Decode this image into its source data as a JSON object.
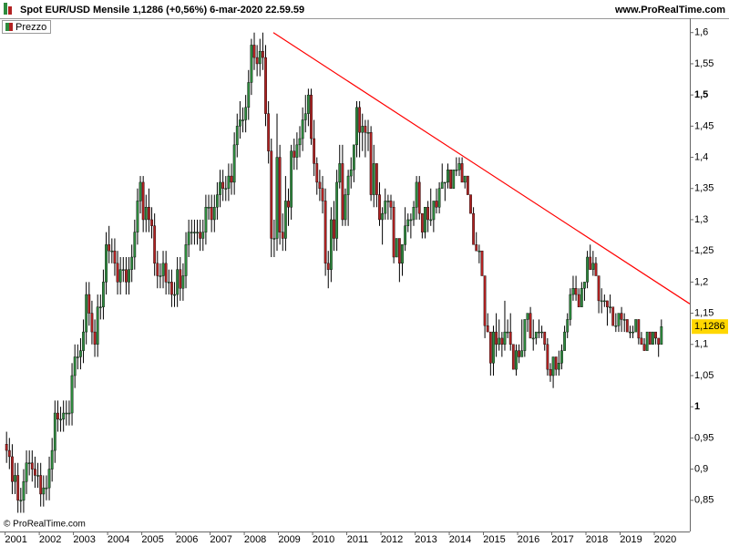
{
  "chart_data": {
    "type": "candlestick",
    "title": "Spot EUR/USD Mensile 1,1286 (+0,56%) 6-mar-2020 22.59.59",
    "source": "www.ProRealTime.com",
    "credit": "© ProRealTime.com",
    "legend": "Prezzo",
    "up_color": "#2e8b3e",
    "down_color": "#b22222",
    "wick_color": "#000000",
    "xlim": [
      2000.85,
      2021.04
    ],
    "xticks": [
      2001,
      2002,
      2003,
      2004,
      2005,
      2006,
      2007,
      2008,
      2009,
      2010,
      2011,
      2012,
      2013,
      2014,
      2015,
      2016,
      2017,
      2018,
      2019,
      2020
    ],
    "ylim": [
      0.8,
      1.623
    ],
    "yticks": [
      {
        "value": 0.85,
        "label": "0,85"
      },
      {
        "value": 0.9,
        "label": "0,9"
      },
      {
        "value": 0.95,
        "label": "0,95"
      },
      1,
      {
        "value": 1.05,
        "label": "1,05"
      },
      {
        "value": 1.1,
        "label": "1,1"
      },
      {
        "value": 1.15,
        "label": "1,15"
      },
      {
        "value": 1.2,
        "label": "1,2"
      },
      {
        "value": 1.25,
        "label": "1,25"
      },
      {
        "value": 1.3,
        "label": "1,3"
      },
      {
        "value": 1.35,
        "label": "1,35"
      },
      {
        "value": 1.4,
        "label": "1,4"
      },
      {
        "value": 1.45,
        "label": "1,45"
      },
      {
        "value": 1.5,
        "label": "1,5"
      },
      {
        "value": 1.55,
        "label": "1,55"
      },
      {
        "value": 1.6,
        "label": "1,6"
      }
    ],
    "trendline": {
      "color": "#ff0000",
      "x": [
        2008.85,
        2021.04
      ],
      "y": [
        1.6,
        1.165
      ]
    },
    "last_price": {
      "value": 1.1286,
      "label": "1,1286",
      "color": "#ffd700"
    },
    "ohlc": [
      [
        0.94,
        0.96,
        0.91,
        0.93
      ],
      [
        0.93,
        0.95,
        0.9,
        0.92
      ],
      [
        0.92,
        0.94,
        0.86,
        0.88
      ],
      [
        0.88,
        0.91,
        0.86,
        0.89
      ],
      [
        0.89,
        0.91,
        0.83,
        0.85
      ],
      [
        0.85,
        0.87,
        0.83,
        0.85
      ],
      [
        0.85,
        0.9,
        0.83,
        0.88
      ],
      [
        0.88,
        0.93,
        0.86,
        0.91
      ],
      [
        0.91,
        0.93,
        0.89,
        0.91
      ],
      [
        0.91,
        0.93,
        0.88,
        0.9
      ],
      [
        0.9,
        0.92,
        0.87,
        0.89
      ],
      [
        0.89,
        0.91,
        0.87,
        0.89
      ],
      [
        0.89,
        0.91,
        0.84,
        0.86
      ],
      [
        0.86,
        0.89,
        0.84,
        0.87
      ],
      [
        0.87,
        0.89,
        0.85,
        0.87
      ],
      [
        0.87,
        0.92,
        0.85,
        0.9
      ],
      [
        0.9,
        0.95,
        0.88,
        0.93
      ],
      [
        0.93,
        1.01,
        0.91,
        0.99
      ],
      [
        0.99,
        1.01,
        0.96,
        0.98
      ],
      [
        0.98,
        1.0,
        0.96,
        0.98
      ],
      [
        0.98,
        1.01,
        0.96,
        0.99
      ],
      [
        0.99,
        1.01,
        0.97,
        0.99
      ],
      [
        0.99,
        1.01,
        0.97,
        0.99
      ],
      [
        0.99,
        1.07,
        0.97,
        1.05
      ],
      [
        1.05,
        1.1,
        1.03,
        1.08
      ],
      [
        1.08,
        1.1,
        1.06,
        1.08
      ],
      [
        1.08,
        1.11,
        1.06,
        1.09
      ],
      [
        1.09,
        1.14,
        1.07,
        1.12
      ],
      [
        1.12,
        1.2,
        1.1,
        1.18
      ],
      [
        1.18,
        1.2,
        1.13,
        1.15
      ],
      [
        1.15,
        1.17,
        1.1,
        1.12
      ],
      [
        1.12,
        1.14,
        1.08,
        1.1
      ],
      [
        1.1,
        1.18,
        1.08,
        1.16
      ],
      [
        1.16,
        1.18,
        1.14,
        1.16
      ],
      [
        1.16,
        1.22,
        1.14,
        1.2
      ],
      [
        1.2,
        1.28,
        1.18,
        1.26
      ],
      [
        1.26,
        1.29,
        1.23,
        1.25
      ],
      [
        1.25,
        1.27,
        1.23,
        1.25
      ],
      [
        1.25,
        1.27,
        1.21,
        1.23
      ],
      [
        1.23,
        1.25,
        1.18,
        1.2
      ],
      [
        1.2,
        1.24,
        1.18,
        1.22
      ],
      [
        1.22,
        1.24,
        1.2,
        1.22
      ],
      [
        1.22,
        1.24,
        1.18,
        1.2
      ],
      [
        1.2,
        1.24,
        1.18,
        1.22
      ],
      [
        1.22,
        1.26,
        1.2,
        1.24
      ],
      [
        1.24,
        1.3,
        1.22,
        1.28
      ],
      [
        1.28,
        1.35,
        1.26,
        1.33
      ],
      [
        1.33,
        1.37,
        1.31,
        1.36
      ],
      [
        1.36,
        1.37,
        1.28,
        1.3
      ],
      [
        1.3,
        1.34,
        1.28,
        1.32
      ],
      [
        1.32,
        1.35,
        1.28,
        1.3
      ],
      [
        1.3,
        1.32,
        1.27,
        1.29
      ],
      [
        1.29,
        1.31,
        1.21,
        1.23
      ],
      [
        1.23,
        1.25,
        1.19,
        1.21
      ],
      [
        1.21,
        1.23,
        1.19,
        1.21
      ],
      [
        1.21,
        1.25,
        1.19,
        1.23
      ],
      [
        1.23,
        1.25,
        1.18,
        1.2
      ],
      [
        1.2,
        1.22,
        1.18,
        1.2
      ],
      [
        1.2,
        1.22,
        1.16,
        1.18
      ],
      [
        1.18,
        1.2,
        1.16,
        1.18
      ],
      [
        1.18,
        1.24,
        1.16,
        1.22
      ],
      [
        1.22,
        1.24,
        1.17,
        1.19
      ],
      [
        1.19,
        1.23,
        1.17,
        1.21
      ],
      [
        1.21,
        1.28,
        1.19,
        1.26
      ],
      [
        1.26,
        1.3,
        1.24,
        1.28
      ],
      [
        1.28,
        1.3,
        1.26,
        1.28
      ],
      [
        1.28,
        1.3,
        1.26,
        1.28
      ],
      [
        1.28,
        1.3,
        1.26,
        1.28
      ],
      [
        1.28,
        1.3,
        1.25,
        1.27
      ],
      [
        1.27,
        1.3,
        1.25,
        1.28
      ],
      [
        1.28,
        1.34,
        1.26,
        1.32
      ],
      [
        1.32,
        1.34,
        1.3,
        1.32
      ],
      [
        1.32,
        1.34,
        1.28,
        1.3
      ],
      [
        1.3,
        1.34,
        1.28,
        1.32
      ],
      [
        1.32,
        1.36,
        1.3,
        1.34
      ],
      [
        1.34,
        1.38,
        1.32,
        1.36
      ],
      [
        1.36,
        1.38,
        1.33,
        1.35
      ],
      [
        1.35,
        1.37,
        1.33,
        1.35
      ],
      [
        1.35,
        1.39,
        1.33,
        1.37
      ],
      [
        1.37,
        1.39,
        1.34,
        1.36
      ],
      [
        1.36,
        1.44,
        1.34,
        1.42
      ],
      [
        1.42,
        1.47,
        1.4,
        1.45
      ],
      [
        1.45,
        1.49,
        1.43,
        1.46
      ],
      [
        1.46,
        1.48,
        1.44,
        1.46
      ],
      [
        1.46,
        1.5,
        1.44,
        1.48
      ],
      [
        1.48,
        1.54,
        1.46,
        1.52
      ],
      [
        1.52,
        1.59,
        1.5,
        1.58
      ],
      [
        1.58,
        1.6,
        1.54,
        1.56
      ],
      [
        1.56,
        1.58,
        1.53,
        1.55
      ],
      [
        1.55,
        1.59,
        1.53,
        1.57
      ],
      [
        1.57,
        1.6,
        1.54,
        1.56
      ],
      [
        1.56,
        1.58,
        1.45,
        1.47
      ],
      [
        1.47,
        1.49,
        1.39,
        1.41
      ],
      [
        1.41,
        1.43,
        1.24,
        1.27
      ],
      [
        1.27,
        1.3,
        1.24,
        1.27
      ],
      [
        1.27,
        1.47,
        1.25,
        1.4
      ],
      [
        1.4,
        1.42,
        1.26,
        1.28
      ],
      [
        1.28,
        1.31,
        1.25,
        1.27
      ],
      [
        1.27,
        1.37,
        1.25,
        1.33
      ],
      [
        1.33,
        1.35,
        1.29,
        1.32
      ],
      [
        1.32,
        1.42,
        1.3,
        1.41
      ],
      [
        1.41,
        1.43,
        1.38,
        1.4
      ],
      [
        1.4,
        1.44,
        1.38,
        1.42
      ],
      [
        1.42,
        1.45,
        1.4,
        1.43
      ],
      [
        1.43,
        1.48,
        1.41,
        1.46
      ],
      [
        1.46,
        1.5,
        1.44,
        1.47
      ],
      [
        1.47,
        1.51,
        1.45,
        1.5
      ],
      [
        1.5,
        1.51,
        1.42,
        1.43
      ],
      [
        1.43,
        1.46,
        1.37,
        1.39
      ],
      [
        1.39,
        1.4,
        1.34,
        1.36
      ],
      [
        1.36,
        1.38,
        1.33,
        1.35
      ],
      [
        1.35,
        1.37,
        1.31,
        1.33
      ],
      [
        1.33,
        1.35,
        1.21,
        1.23
      ],
      [
        1.23,
        1.25,
        1.19,
        1.22
      ],
      [
        1.22,
        1.32,
        1.2,
        1.3
      ],
      [
        1.3,
        1.33,
        1.25,
        1.27
      ],
      [
        1.27,
        1.38,
        1.25,
        1.36
      ],
      [
        1.36,
        1.42,
        1.35,
        1.39
      ],
      [
        1.39,
        1.42,
        1.29,
        1.3
      ],
      [
        1.3,
        1.35,
        1.29,
        1.34
      ],
      [
        1.34,
        1.38,
        1.29,
        1.37
      ],
      [
        1.37,
        1.4,
        1.35,
        1.38
      ],
      [
        1.38,
        1.42,
        1.36,
        1.42
      ],
      [
        1.42,
        1.49,
        1.4,
        1.48
      ],
      [
        1.48,
        1.49,
        1.4,
        1.44
      ],
      [
        1.44,
        1.47,
        1.41,
        1.45
      ],
      [
        1.45,
        1.46,
        1.4,
        1.44
      ],
      [
        1.44,
        1.46,
        1.41,
        1.44
      ],
      [
        1.44,
        1.45,
        1.33,
        1.34
      ],
      [
        1.34,
        1.42,
        1.32,
        1.39
      ],
      [
        1.39,
        1.39,
        1.32,
        1.34
      ],
      [
        1.34,
        1.36,
        1.29,
        1.3
      ],
      [
        1.3,
        1.32,
        1.26,
        1.31
      ],
      [
        1.31,
        1.35,
        1.3,
        1.33
      ],
      [
        1.33,
        1.34,
        1.3,
        1.33
      ],
      [
        1.33,
        1.34,
        1.3,
        1.32
      ],
      [
        1.32,
        1.33,
        1.23,
        1.24
      ],
      [
        1.24,
        1.27,
        1.24,
        1.27
      ],
      [
        1.27,
        1.27,
        1.2,
        1.23
      ],
      [
        1.23,
        1.26,
        1.21,
        1.26
      ],
      [
        1.26,
        1.32,
        1.25,
        1.29
      ],
      [
        1.29,
        1.31,
        1.28,
        1.3
      ],
      [
        1.3,
        1.31,
        1.27,
        1.3
      ],
      [
        1.3,
        1.33,
        1.29,
        1.32
      ],
      [
        1.32,
        1.37,
        1.3,
        1.36
      ],
      [
        1.36,
        1.37,
        1.3,
        1.31
      ],
      [
        1.31,
        1.31,
        1.27,
        1.28
      ],
      [
        1.28,
        1.32,
        1.27,
        1.32
      ],
      [
        1.32,
        1.33,
        1.28,
        1.3
      ],
      [
        1.3,
        1.35,
        1.29,
        1.3
      ],
      [
        1.3,
        1.33,
        1.28,
        1.33
      ],
      [
        1.33,
        1.35,
        1.31,
        1.32
      ],
      [
        1.32,
        1.36,
        1.31,
        1.35
      ],
      [
        1.35,
        1.39,
        1.35,
        1.36
      ],
      [
        1.36,
        1.36,
        1.33,
        1.36
      ],
      [
        1.36,
        1.39,
        1.35,
        1.38
      ],
      [
        1.38,
        1.38,
        1.35,
        1.35
      ],
      [
        1.35,
        1.38,
        1.35,
        1.38
      ],
      [
        1.38,
        1.4,
        1.37,
        1.38
      ],
      [
        1.38,
        1.4,
        1.37,
        1.39
      ],
      [
        1.39,
        1.4,
        1.36,
        1.36
      ],
      [
        1.36,
        1.37,
        1.35,
        1.37
      ],
      [
        1.37,
        1.37,
        1.34,
        1.34
      ],
      [
        1.34,
        1.34,
        1.31,
        1.31
      ],
      [
        1.31,
        1.32,
        1.26,
        1.26
      ],
      [
        1.26,
        1.28,
        1.25,
        1.25
      ],
      [
        1.25,
        1.26,
        1.23,
        1.25
      ],
      [
        1.25,
        1.25,
        1.21,
        1.21
      ],
      [
        1.21,
        1.21,
        1.11,
        1.13
      ],
      [
        1.13,
        1.15,
        1.12,
        1.12
      ],
      [
        1.12,
        1.12,
        1.05,
        1.07
      ],
      [
        1.07,
        1.13,
        1.05,
        1.12
      ],
      [
        1.12,
        1.15,
        1.08,
        1.1
      ],
      [
        1.1,
        1.14,
        1.09,
        1.11
      ],
      [
        1.11,
        1.12,
        1.08,
        1.1
      ],
      [
        1.1,
        1.17,
        1.09,
        1.12
      ],
      [
        1.12,
        1.14,
        1.11,
        1.12
      ],
      [
        1.12,
        1.15,
        1.09,
        1.1
      ],
      [
        1.1,
        1.1,
        1.06,
        1.06
      ],
      [
        1.06,
        1.1,
        1.05,
        1.09
      ],
      [
        1.09,
        1.1,
        1.07,
        1.08
      ],
      [
        1.08,
        1.14,
        1.08,
        1.09
      ],
      [
        1.09,
        1.14,
        1.08,
        1.14
      ],
      [
        1.14,
        1.15,
        1.12,
        1.15
      ],
      [
        1.15,
        1.16,
        1.11,
        1.11
      ],
      [
        1.11,
        1.14,
        1.09,
        1.11
      ],
      [
        1.11,
        1.12,
        1.1,
        1.12
      ],
      [
        1.12,
        1.14,
        1.11,
        1.12
      ],
      [
        1.12,
        1.13,
        1.11,
        1.12
      ],
      [
        1.12,
        1.12,
        1.09,
        1.1
      ],
      [
        1.1,
        1.11,
        1.05,
        1.06
      ],
      [
        1.06,
        1.07,
        1.04,
        1.05
      ],
      [
        1.05,
        1.08,
        1.03,
        1.08
      ],
      [
        1.08,
        1.08,
        1.05,
        1.06
      ],
      [
        1.06,
        1.09,
        1.05,
        1.07
      ],
      [
        1.07,
        1.1,
        1.06,
        1.09
      ],
      [
        1.09,
        1.13,
        1.09,
        1.12
      ],
      [
        1.12,
        1.15,
        1.11,
        1.14
      ],
      [
        1.14,
        1.19,
        1.13,
        1.18
      ],
      [
        1.18,
        1.21,
        1.17,
        1.19
      ],
      [
        1.19,
        1.21,
        1.17,
        1.18
      ],
      [
        1.18,
        1.19,
        1.16,
        1.16
      ],
      [
        1.16,
        1.2,
        1.16,
        1.19
      ],
      [
        1.19,
        1.2,
        1.17,
        1.2
      ],
      [
        1.2,
        1.25,
        1.19,
        1.24
      ],
      [
        1.24,
        1.26,
        1.22,
        1.22
      ],
      [
        1.22,
        1.25,
        1.21,
        1.23
      ],
      [
        1.23,
        1.24,
        1.21,
        1.21
      ],
      [
        1.21,
        1.21,
        1.15,
        1.17
      ],
      [
        1.17,
        1.19,
        1.15,
        1.17
      ],
      [
        1.17,
        1.18,
        1.16,
        1.17
      ],
      [
        1.17,
        1.17,
        1.13,
        1.16
      ],
      [
        1.16,
        1.18,
        1.15,
        1.16
      ],
      [
        1.16,
        1.16,
        1.13,
        1.13
      ],
      [
        1.13,
        1.15,
        1.12,
        1.13
      ],
      [
        1.13,
        1.15,
        1.12,
        1.15
      ],
      [
        1.15,
        1.16,
        1.12,
        1.14
      ],
      [
        1.14,
        1.15,
        1.12,
        1.14
      ],
      [
        1.14,
        1.14,
        1.12,
        1.12
      ],
      [
        1.12,
        1.13,
        1.11,
        1.12
      ],
      [
        1.12,
        1.13,
        1.11,
        1.12
      ],
      [
        1.12,
        1.14,
        1.12,
        1.14
      ],
      [
        1.14,
        1.14,
        1.1,
        1.11
      ],
      [
        1.11,
        1.12,
        1.1,
        1.1
      ],
      [
        1.1,
        1.11,
        1.09,
        1.09
      ],
      [
        1.09,
        1.12,
        1.09,
        1.12
      ],
      [
        1.12,
        1.12,
        1.1,
        1.1
      ],
      [
        1.1,
        1.12,
        1.1,
        1.12
      ],
      [
        1.12,
        1.12,
        1.1,
        1.11
      ],
      [
        1.11,
        1.11,
        1.08,
        1.1
      ],
      [
        1.1,
        1.14,
        1.1,
        1.1286
      ]
    ]
  }
}
